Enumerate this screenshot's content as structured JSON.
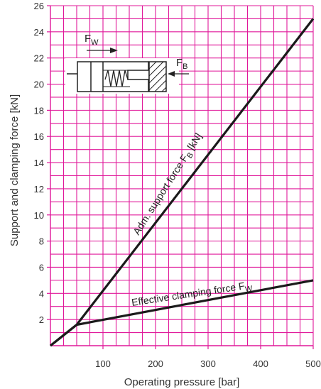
{
  "chart_data": {
    "type": "line",
    "xlabel": "Operating pressure [bar]",
    "ylabel": "Support and clamping force [kN]",
    "xlim": [
      0,
      500
    ],
    "ylim": [
      0,
      26
    ],
    "x_ticks": [
      100,
      200,
      300,
      400,
      500
    ],
    "y_ticks": [
      2,
      4,
      6,
      8,
      10,
      12,
      14,
      16,
      18,
      20,
      22,
      24,
      26
    ],
    "grid": true,
    "grid_color": "#e0189a",
    "series": [
      {
        "name": "Adm. support force F_B [kN]",
        "label_main": "Adm. support force F",
        "label_sub": "B",
        "label_tail": " [kN]",
        "points": [
          [
            0,
            0
          ],
          [
            50,
            1.6
          ],
          [
            500,
            25
          ]
        ]
      },
      {
        "name": "Effective clamping force F_W",
        "label_main": "Effective clamping force F",
        "label_sub": "W",
        "label_tail": "",
        "points": [
          [
            0,
            0
          ],
          [
            50,
            1.6
          ],
          [
            500,
            5
          ]
        ]
      }
    ]
  },
  "schematic": {
    "fw_main": "F",
    "fw_sub": "W",
    "fb_main": "F",
    "fb_sub": "B"
  }
}
